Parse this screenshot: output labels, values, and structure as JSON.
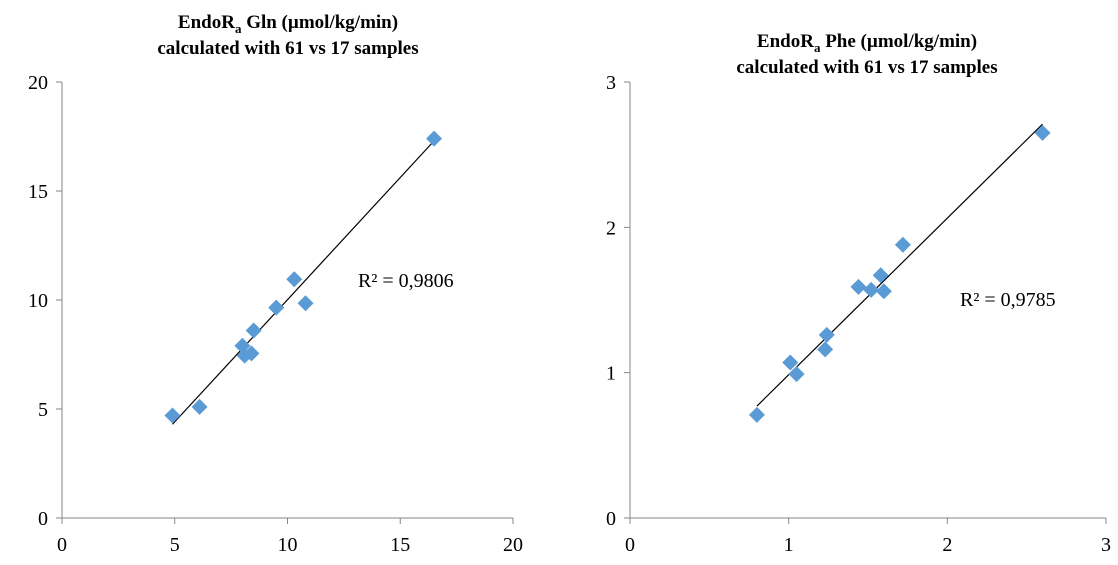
{
  "chart_data": [
    {
      "type": "scatter",
      "title_prefix": "EndoR",
      "title_subscript": "a",
      "title_suffix": " Gln (µmol/kg/min)",
      "title_line2": "calculated with 61 vs 17 samples",
      "xlabel": "",
      "ylabel": "",
      "xlim": [
        0,
        20
      ],
      "ylim": [
        0,
        20
      ],
      "xticks": [
        "0",
        "5",
        "10",
        "15",
        "20"
      ],
      "yticks": [
        "0",
        "5",
        "10",
        "15",
        "20"
      ],
      "grid": false,
      "points": [
        {
          "x": 4.9,
          "y": 4.7
        },
        {
          "x": 6.1,
          "y": 5.1
        },
        {
          "x": 8.0,
          "y": 7.9
        },
        {
          "x": 8.1,
          "y": 7.45
        },
        {
          "x": 8.4,
          "y": 7.55
        },
        {
          "x": 8.5,
          "y": 8.6
        },
        {
          "x": 9.5,
          "y": 9.65
        },
        {
          "x": 10.3,
          "y": 10.95
        },
        {
          "x": 10.8,
          "y": 9.85
        },
        {
          "x": 16.5,
          "y": 17.4
        }
      ],
      "trendline": {
        "x": [
          4.9,
          16.5
        ],
        "y": [
          4.3,
          17.3
        ]
      },
      "r2_label": "R² = 0,9806"
    },
    {
      "type": "scatter",
      "title_prefix": "EndoR",
      "title_subscript": "a",
      "title_suffix": " Phe (µmol/kg/min)",
      "title_line2": "calculated with 61 vs 17 samples",
      "xlabel": "",
      "ylabel": "",
      "xlim": [
        0,
        3
      ],
      "ylim": [
        0,
        3
      ],
      "xticks": [
        "0",
        "1",
        "2",
        "3"
      ],
      "yticks": [
        "0",
        "1",
        "2",
        "3"
      ],
      "grid": false,
      "points": [
        {
          "x": 0.8,
          "y": 0.71
        },
        {
          "x": 1.01,
          "y": 1.07
        },
        {
          "x": 1.05,
          "y": 0.99
        },
        {
          "x": 1.23,
          "y": 1.16
        },
        {
          "x": 1.24,
          "y": 1.26
        },
        {
          "x": 1.44,
          "y": 1.59
        },
        {
          "x": 1.52,
          "y": 1.57
        },
        {
          "x": 1.58,
          "y": 1.67
        },
        {
          "x": 1.6,
          "y": 1.56
        },
        {
          "x": 1.72,
          "y": 1.88
        },
        {
          "x": 2.6,
          "y": 2.65
        }
      ],
      "trendline": {
        "x": [
          0.8,
          2.6
        ],
        "y": [
          0.77,
          2.71
        ]
      },
      "r2_label": "R² = 0,9785"
    }
  ]
}
